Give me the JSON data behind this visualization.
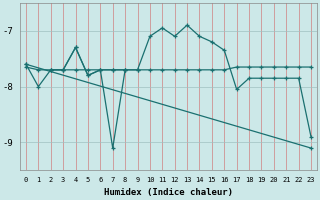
{
  "bg_color": "#cce8e8",
  "line_color": "#1a7070",
  "xlabel": "Humidex (Indice chaleur)",
  "ylim": [
    -9.5,
    -6.5
  ],
  "xlim": [
    -0.5,
    23.5
  ],
  "yticks": [
    -9,
    -8,
    -7
  ],
  "xticks": [
    0,
    1,
    2,
    3,
    4,
    5,
    6,
    7,
    8,
    9,
    10,
    11,
    12,
    13,
    14,
    15,
    16,
    17,
    18,
    19,
    20,
    21,
    22,
    23
  ],
  "line1_x": [
    0,
    1,
    2,
    3,
    4,
    5,
    6,
    7,
    8,
    9,
    10,
    11,
    12,
    13,
    14,
    15,
    16,
    17,
    18,
    19,
    20,
    21,
    22,
    23
  ],
  "line1_y": [
    -7.6,
    -8.0,
    -7.7,
    -7.7,
    -7.3,
    -7.8,
    -7.7,
    -9.1,
    -7.7,
    -7.7,
    -7.1,
    -6.95,
    -7.1,
    -6.9,
    -7.1,
    -7.2,
    -7.35,
    -8.05,
    -7.85,
    -7.85,
    -7.85,
    -7.85,
    -7.85,
    -8.9
  ],
  "line2_x": [
    2,
    3,
    4,
    5,
    6,
    7,
    8
  ],
  "line2_y": [
    -7.7,
    -7.7,
    -7.3,
    -7.8,
    -7.7,
    -7.7,
    -7.7
  ],
  "line3_x": [
    0,
    1,
    2,
    3,
    4,
    5,
    6,
    7,
    8,
    9,
    10,
    11,
    12,
    13,
    14,
    15,
    16,
    17,
    18,
    19,
    20,
    21,
    22,
    23
  ],
  "line3_y": [
    -7.65,
    -7.7,
    -7.7,
    -7.7,
    -7.7,
    -7.7,
    -7.7,
    -7.7,
    -7.7,
    -7.7,
    -7.7,
    -7.7,
    -7.7,
    -7.7,
    -7.7,
    -7.7,
    -7.7,
    -7.65,
    -7.65,
    -7.65,
    -7.65,
    -7.65,
    -7.65,
    -7.65
  ],
  "line4_x": [
    0,
    23
  ],
  "line4_y": [
    -7.6,
    -9.1
  ]
}
